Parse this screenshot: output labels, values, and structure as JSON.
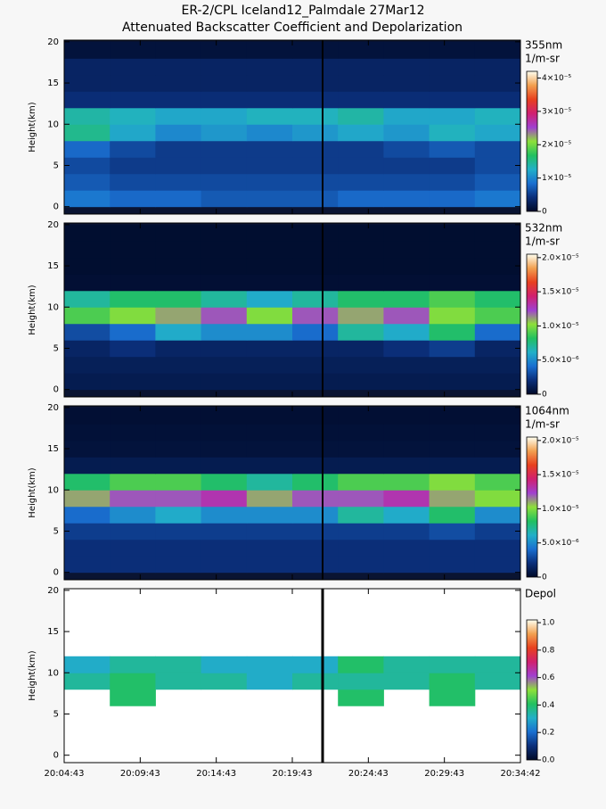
{
  "title": [
    "ER-2/CPL Iceland12_Palmdale 27Mar12",
    "Attenuated Backscatter Coefficient and Depolarization"
  ],
  "colormap": [
    "#000a28",
    "#0b2f7a",
    "#1a6fd0",
    "#22b0c8",
    "#22c060",
    "#8ee03a",
    "#a040d0",
    "#d02070",
    "#e8401e",
    "#f2a050",
    "#fffff0"
  ],
  "chart_data": [
    {
      "type": "heatmap",
      "wavelength": "355nm",
      "unit": "1/m-sr",
      "ylabel": "Height(km)",
      "ylim": [
        -0.9,
        20.2
      ],
      "yticks": [
        0,
        5,
        10,
        15,
        20
      ],
      "height_bins": [
        0,
        2,
        4,
        6,
        8,
        10,
        12,
        14,
        16,
        18,
        20
      ],
      "zlim": [
        0,
        4.2e-05
      ],
      "zticks": [
        0,
        {
          "value": 1e-05,
          "label": "1×10⁻⁵"
        },
        {
          "value": 2e-05,
          "label": "2×10⁻⁵"
        },
        {
          "value": 3e-05,
          "label": "3×10⁻⁵"
        },
        {
          "value": 4e-05,
          "label": "4×10⁻⁵"
        }
      ],
      "background": "#0a1432",
      "z": [
        [
          9e-06,
          8e-06,
          8e-06,
          7e-06,
          7e-06,
          7e-06,
          8e-06,
          8e-06,
          8e-06,
          9e-06
        ],
        [
          7e-06,
          6e-06,
          6e-06,
          6e-06,
          6e-06,
          6e-06,
          6e-06,
          6e-06,
          6e-06,
          7e-06
        ],
        [
          6e-06,
          5e-06,
          5e-06,
          5e-06,
          5e-06,
          5e-06,
          5e-06,
          5e-06,
          5e-06,
          6e-06
        ],
        [
          8e-06,
          6e-06,
          5e-06,
          5e-06,
          5e-06,
          5e-06,
          5e-06,
          6e-06,
          7e-06,
          6e-06
        ],
        [
          1.5e-05,
          1.2e-05,
          1e-05,
          1.1e-05,
          1e-05,
          1.1e-05,
          1.2e-05,
          1.1e-05,
          1.3e-05,
          1.2e-05
        ],
        [
          1.4e-05,
          1.3e-05,
          1.2e-05,
          1.2e-05,
          1.3e-05,
          1.3e-05,
          1.4e-05,
          1.2e-05,
          1.2e-05,
          1.3e-05
        ],
        [
          4e-06,
          4e-06,
          4e-06,
          4e-06,
          4e-06,
          4e-06,
          4e-06,
          4e-06,
          4e-06,
          4e-06
        ],
        [
          3e-06,
          3e-06,
          3e-06,
          3e-06,
          3e-06,
          3e-06,
          3e-06,
          3e-06,
          3e-06,
          3e-06
        ],
        [
          3e-06,
          3e-06,
          3e-06,
          3e-06,
          3e-06,
          3e-06,
          3e-06,
          3e-06,
          3e-06,
          3e-06
        ],
        [
          1e-06,
          1e-06,
          1e-06,
          1e-06,
          1e-06,
          1e-06,
          1e-06,
          1e-06,
          1e-06,
          1e-06
        ]
      ]
    },
    {
      "type": "heatmap",
      "wavelength": "532nm",
      "unit": "1/m-sr",
      "ylabel": "Height(km)",
      "ylim": [
        -0.9,
        20.2
      ],
      "yticks": [
        0,
        5,
        10,
        15,
        20
      ],
      "height_bins": [
        0,
        2,
        4,
        6,
        8,
        10,
        12,
        14,
        16,
        18,
        20
      ],
      "zlim": [
        0,
        2.05e-05
      ],
      "zticks": [
        0,
        {
          "value": 5e-06,
          "label": "5.0×10⁻⁶"
        },
        {
          "value": 1e-05,
          "label": "1.0×10⁻⁵"
        },
        {
          "value": 1.5e-05,
          "label": "1.5×10⁻⁵"
        },
        {
          "value": 2e-05,
          "label": "2.0×10⁻⁵"
        }
      ],
      "background": "#0a1432",
      "z": [
        [
          1e-06,
          1e-06,
          1e-06,
          1e-06,
          1e-06,
          1e-06,
          1e-06,
          1e-06,
          1e-06,
          1e-06
        ],
        [
          1.2e-06,
          1.2e-06,
          1.2e-06,
          1.2e-06,
          1.2e-06,
          1.2e-06,
          1.2e-06,
          1.2e-06,
          1.2e-06,
          1.2e-06
        ],
        [
          1.5e-06,
          2e-06,
          1.5e-06,
          1.5e-06,
          1.5e-06,
          1.5e-06,
          1.5e-06,
          2e-06,
          2.5e-06,
          1.5e-06
        ],
        [
          3e-06,
          4e-06,
          6e-06,
          5e-06,
          5e-06,
          4e-06,
          7e-06,
          6e-06,
          8e-06,
          4e-06
        ],
        [
          9e-06,
          1e-05,
          1.1e-05,
          1.2e-05,
          1e-05,
          1.2e-05,
          1.1e-05,
          1.2e-05,
          1e-05,
          9e-06
        ],
        [
          7e-06,
          8e-06,
          8e-06,
          7e-06,
          6e-06,
          7e-06,
          8e-06,
          8e-06,
          9e-06,
          8e-06
        ],
        [
          3e-07,
          3e-07,
          3e-07,
          3e-07,
          3e-07,
          3e-07,
          3e-07,
          3e-07,
          3e-07,
          3e-07
        ],
        [
          2e-07,
          2e-07,
          2e-07,
          2e-07,
          2e-07,
          2e-07,
          2e-07,
          2e-07,
          2e-07,
          2e-07
        ],
        [
          2e-07,
          2e-07,
          2e-07,
          2e-07,
          2e-07,
          2e-07,
          2e-07,
          2e-07,
          2e-07,
          2e-07
        ],
        [
          2e-07,
          2e-07,
          2e-07,
          2e-07,
          2e-07,
          2e-07,
          2e-07,
          2e-07,
          2e-07,
          2e-07
        ]
      ]
    },
    {
      "type": "heatmap",
      "wavelength": "1064nm",
      "unit": "1/m-sr",
      "ylabel": "Height(km)",
      "ylim": [
        -0.9,
        20.2
      ],
      "yticks": [
        0,
        5,
        10,
        15,
        20
      ],
      "height_bins": [
        0,
        2,
        4,
        6,
        8,
        10,
        12,
        14,
        16,
        18,
        20
      ],
      "zlim": [
        0,
        2.05e-05
      ],
      "zticks": [
        0,
        {
          "value": 5e-06,
          "label": "5.0×10⁻⁶"
        },
        {
          "value": 1e-05,
          "label": "1.0×10⁻⁵"
        },
        {
          "value": 1.5e-05,
          "label": "1.5×10⁻⁵"
        },
        {
          "value": 2e-05,
          "label": "2.0×10⁻⁵"
        }
      ],
      "background": "#0a1432",
      "z": [
        [
          2e-06,
          2e-06,
          2e-06,
          2e-06,
          2e-06,
          2e-06,
          2e-06,
          2e-06,
          2e-06,
          2e-06
        ],
        [
          2e-06,
          2e-06,
          2e-06,
          2e-06,
          2e-06,
          2e-06,
          2e-06,
          2e-06,
          2e-06,
          2e-06
        ],
        [
          2.5e-06,
          2.5e-06,
          2.5e-06,
          2.5e-06,
          2.5e-06,
          2.5e-06,
          2.5e-06,
          2.5e-06,
          3e-06,
          2.5e-06
        ],
        [
          4e-06,
          5e-06,
          6e-06,
          5e-06,
          5e-06,
          5e-06,
          7e-06,
          6e-06,
          8e-06,
          5e-06
        ],
        [
          1.1e-05,
          1.2e-05,
          1.2e-05,
          1.3e-05,
          1.1e-05,
          1.2e-05,
          1.2e-05,
          1.3e-05,
          1.1e-05,
          1e-05
        ],
        [
          8e-06,
          9e-06,
          9e-06,
          8e-06,
          7e-06,
          8e-06,
          9e-06,
          9e-06,
          1e-05,
          9e-06
        ],
        [
          1e-06,
          1e-06,
          1e-06,
          1e-06,
          1e-06,
          1e-06,
          1e-06,
          1e-06,
          1e-06,
          1e-06
        ],
        [
          5e-07,
          5e-07,
          5e-07,
          5e-07,
          5e-07,
          5e-07,
          5e-07,
          5e-07,
          5e-07,
          5e-07
        ],
        [
          4e-07,
          4e-07,
          4e-07,
          4e-07,
          4e-07,
          4e-07,
          4e-07,
          4e-07,
          4e-07,
          4e-07
        ],
        [
          3e-07,
          3e-07,
          3e-07,
          3e-07,
          3e-07,
          3e-07,
          3e-07,
          3e-07,
          3e-07,
          3e-07
        ]
      ]
    },
    {
      "type": "heatmap",
      "wavelength": "Depol",
      "ylabel": "Height(km)",
      "ylim": [
        -0.9,
        20.2
      ],
      "yticks": [
        0,
        5,
        10,
        15,
        20
      ],
      "height_bins": [
        0,
        2,
        4,
        6,
        8,
        10,
        12,
        14,
        16,
        18,
        20
      ],
      "zlim": [
        0,
        1.02
      ],
      "zticks": [
        {
          "value": 0,
          "label": "0.0"
        },
        0.2,
        0.4,
        0.6,
        0.8,
        {
          "value": 1,
          "label": "1.0"
        }
      ],
      "background": "#ffffff",
      "xticks": [
        "20:04:43",
        "20:09:43",
        "20:14:43",
        "20:19:43",
        "20:24:43",
        "20:29:43",
        "20:34:42"
      ],
      "z": [
        [
          null,
          null,
          null,
          null,
          null,
          null,
          null,
          null,
          null,
          null
        ],
        [
          null,
          null,
          null,
          null,
          null,
          null,
          null,
          null,
          null,
          null
        ],
        [
          null,
          null,
          null,
          null,
          null,
          null,
          null,
          null,
          null,
          null
        ],
        [
          null,
          0.4,
          null,
          null,
          null,
          null,
          0.4,
          null,
          0.4,
          null
        ],
        [
          0.35,
          0.4,
          0.35,
          0.35,
          0.3,
          0.35,
          0.35,
          0.35,
          0.4,
          0.35
        ],
        [
          0.3,
          0.35,
          0.35,
          0.3,
          0.3,
          0.3,
          0.4,
          0.35,
          0.35,
          0.35
        ],
        [
          null,
          null,
          null,
          null,
          null,
          null,
          null,
          null,
          null,
          null
        ],
        [
          null,
          null,
          null,
          null,
          null,
          null,
          null,
          null,
          null,
          null
        ],
        [
          null,
          null,
          null,
          null,
          null,
          null,
          null,
          null,
          null,
          null
        ],
        [
          null,
          null,
          null,
          null,
          null,
          null,
          null,
          null,
          null,
          null
        ]
      ]
    }
  ]
}
